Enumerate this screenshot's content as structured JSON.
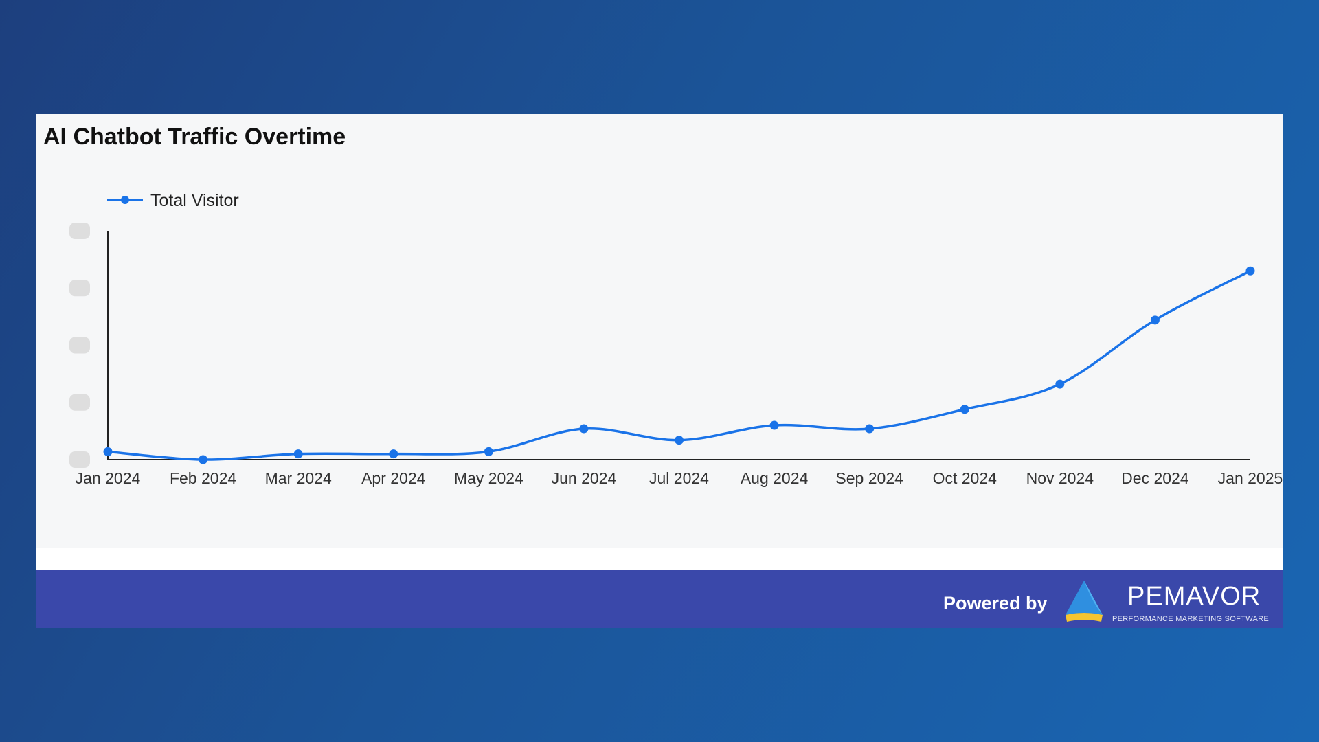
{
  "chart_data": {
    "type": "line",
    "title": "AI Chatbot Traffic Overtime",
    "categories": [
      "Jan 2024",
      "Feb 2024",
      "Mar 2024",
      "Apr 2024",
      "May 2024",
      "Jun 2024",
      "Jul 2024",
      "Aug 2024",
      "Sep 2024",
      "Oct 2024",
      "Nov 2024",
      "Dec 2024",
      "Jan 2025"
    ],
    "series": [
      {
        "name": "Total Visitor",
        "values": [
          3.5,
          0,
          2.5,
          2.5,
          3.5,
          13.5,
          8.5,
          15,
          13.5,
          22,
          33,
          61,
          82.5
        ]
      }
    ],
    "ylim": [
      0,
      100
    ],
    "ylabel": "",
    "xlabel": "",
    "y_tick_labels_obscured": true,
    "legend_position": "top-left",
    "grid": false,
    "colors": {
      "line": "#1a73e8",
      "axis": "#222222"
    }
  },
  "footer": {
    "powered_by": "Powered by",
    "brand": "PEMAVOR",
    "tagline": "PERFORMANCE MARKETING SOFTWARE"
  }
}
